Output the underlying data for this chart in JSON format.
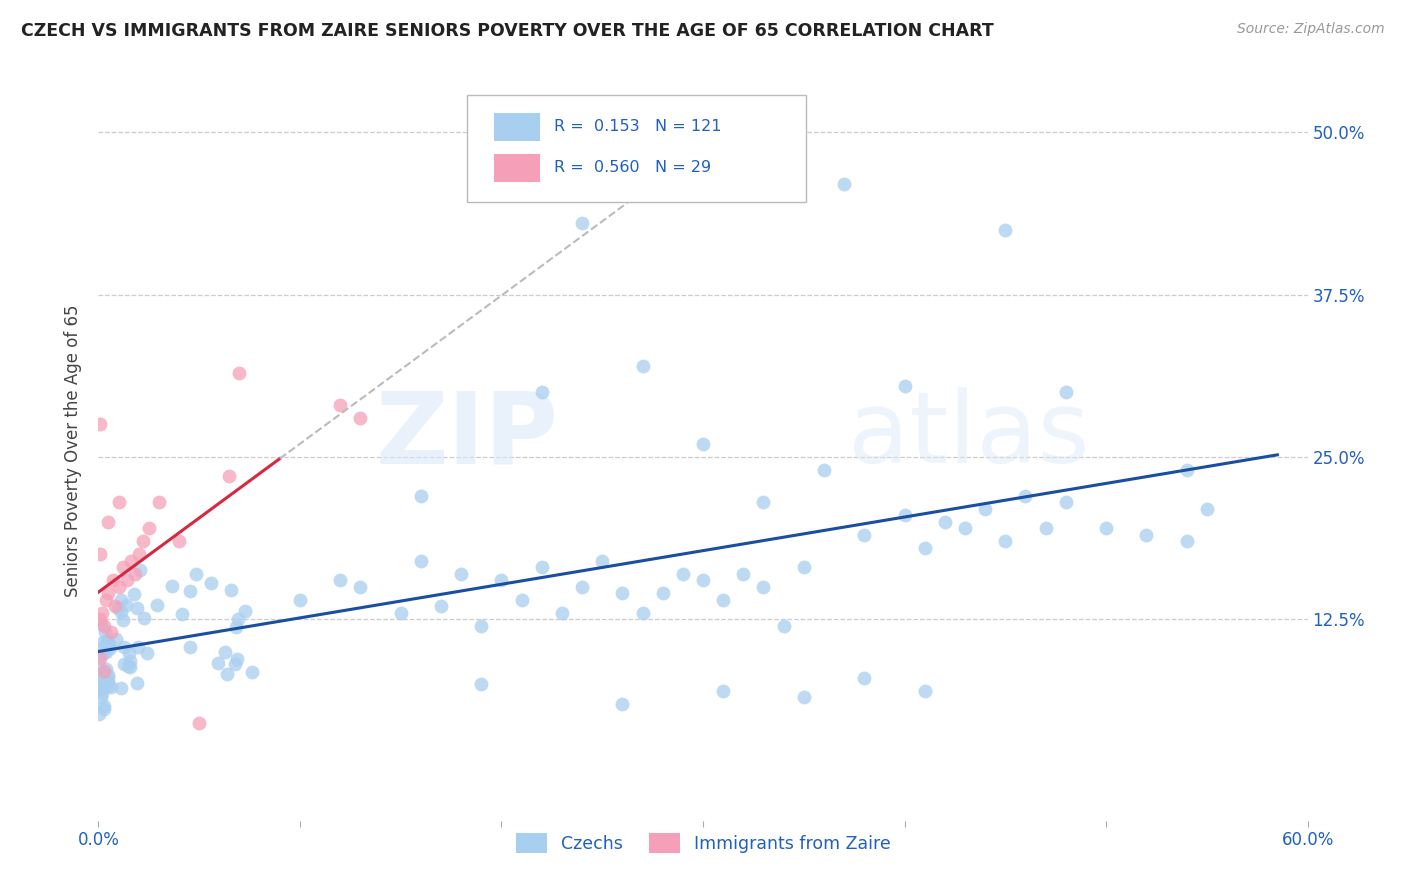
{
  "title": "CZECH VS IMMIGRANTS FROM ZAIRE SENIORS POVERTY OVER THE AGE OF 65 CORRELATION CHART",
  "source": "Source: ZipAtlas.com",
  "ylabel": "Seniors Poverty Over the Age of 65",
  "xlim": [
    0.0,
    0.6
  ],
  "ylim": [
    -0.03,
    0.54
  ],
  "yticks": [
    0.0,
    0.125,
    0.25,
    0.375,
    0.5
  ],
  "ytick_labels": [
    "",
    "12.5%",
    "25.0%",
    "37.5%",
    "50.0%"
  ],
  "grid_yticks": [
    0.125,
    0.25,
    0.375,
    0.5
  ],
  "R_czech": 0.153,
  "N_czech": 121,
  "R_zaire": 0.56,
  "N_zaire": 29,
  "legend_label_czech": "Czechs",
  "legend_label_zaire": "Immigrants from Zaire",
  "color_czech": "#A8CEF0",
  "color_zaire": "#F5A0B8",
  "color_trend_czech": "#1A4FA0",
  "color_trend_zaire": "#D82840",
  "color_trend_zaire_dash": "#C8C8C8",
  "background_color": "#FFFFFF",
  "watermark_zip": "ZIP",
  "watermark_atlas": "atlas"
}
